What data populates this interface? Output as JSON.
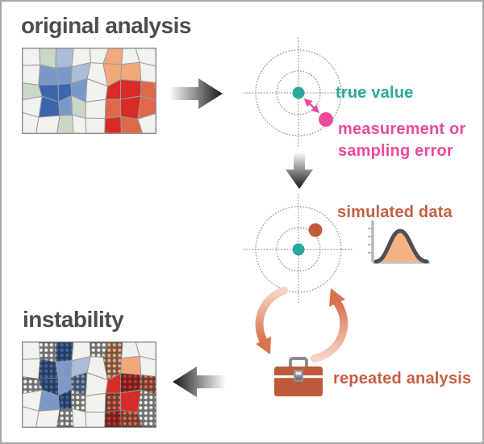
{
  "sections": {
    "original": {
      "heading": "original analysis"
    },
    "instability": {
      "heading": "instability"
    }
  },
  "annotations": {
    "true_value": "true value",
    "error": "measurement or sampling error",
    "simulated": "simulated data",
    "repeated": "repeated analysis"
  },
  "colors": {
    "heading": "#4d4d4d",
    "teal": "#2aa89b",
    "pink": "#ee4a9b",
    "rust_text": "#c55f41",
    "rust_dot": "#c25b3c",
    "toolbox": "#bf5a39",
    "salmon_light": "#f5cfc1",
    "salmon_dark": "#d8734e",
    "curve_fill": "#f5b185",
    "curve_stroke": "#4f4f4f",
    "axis_gray": "#b8b8b8",
    "dotted_gray": "#a2a2a2",
    "arrow_dark": "#161616",
    "map_border": "#8f8f8f",
    "county_stroke": "#9b9b9b",
    "county_base": "#f1f1ee"
  },
  "map_palette": {
    "w": "#f1f1ee",
    "g": "#ccd7c7",
    "b1": "#3b66ae",
    "b2": "#7b99c8",
    "b3": "#a9bcd8",
    "o1": "#f3a87c",
    "o2": "#e0684a",
    "r": "#d62b27"
  },
  "maps": {
    "original": {
      "grid": [
        [
          "w",
          "g",
          "b3",
          "w",
          "w",
          "o1",
          "w",
          "w"
        ],
        [
          "w",
          "b2",
          "b2",
          "b3",
          "w",
          "o1",
          "o1",
          "w"
        ],
        [
          "g",
          "b1",
          "b1",
          "b2",
          "w",
          "r",
          "r",
          "o2"
        ],
        [
          "w",
          "b1",
          "b2",
          "g",
          "w",
          "o2",
          "r",
          "o2"
        ],
        [
          "w",
          "w",
          "g",
          "w",
          "w",
          "r",
          "o2",
          "w"
        ]
      ]
    },
    "instability": {
      "grid": [
        [
          "w",
          "wH",
          "b1H",
          "w",
          "wH",
          "o1H",
          "w",
          "w"
        ],
        [
          "w",
          "b1H",
          "b2",
          "b3",
          "w",
          "o1H",
          "o1",
          "w"
        ],
        [
          "wH",
          "b1H",
          "b2",
          "b2H",
          "w",
          "r",
          "rH",
          "o2H"
        ],
        [
          "w",
          "b2",
          "b1H",
          "wH",
          "w",
          "o2H",
          "r",
          "wH"
        ],
        [
          "w",
          "w",
          "wH",
          "w",
          "w",
          "rH",
          "o2H",
          "wH"
        ]
      ]
    }
  },
  "icons": {
    "flow_arrow_right": "gradient-arrow-right",
    "flow_arrow_down": "gradient-arrow-down",
    "flow_arrow_left": "gradient-arrow-left",
    "target": "dotted-bullseye-crosshair",
    "distribution": "bell-curve-chart",
    "cycle": "circular-repeat-arrows",
    "toolbox": "toolbox"
  }
}
